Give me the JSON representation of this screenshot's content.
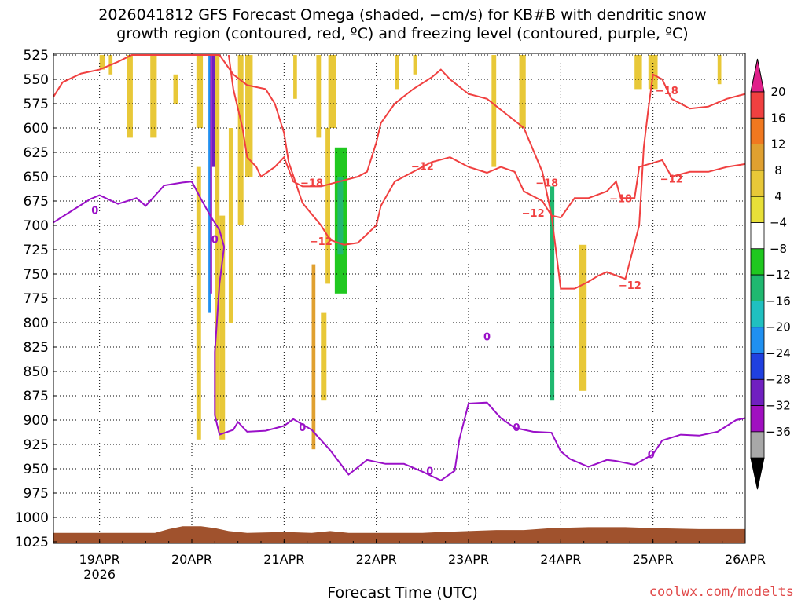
{
  "title_line1": "2026041812 GFS Forecast Omega (shaded, −cm/s) for KB#B with dendritic snow",
  "title_line2": "growth region (contoured, red, ºC) and freezing level (contoured, purple, ºC)",
  "credit": "coolwx.com/modelts",
  "chart_data": {
    "type": "heatmap",
    "title": "2026041812 GFS Forecast Omega (shaded, −cm/s) for KB#B with dendritic snow growth region (contoured, red, ºC) and freezing level (contoured, purple, ºC)",
    "xlabel": "Forecast Time (UTC)",
    "ylabel": "",
    "x_ticks": [
      "19APR",
      "20APR",
      "21APR",
      "22APR",
      "23APR",
      "24APR",
      "25APR",
      "26APR"
    ],
    "x_year_label": "2026",
    "x_range_days": [
      18.5,
      26.0
    ],
    "y_ticks": [
      525,
      550,
      575,
      600,
      625,
      650,
      675,
      700,
      725,
      750,
      775,
      800,
      825,
      850,
      875,
      900,
      925,
      950,
      975,
      1000,
      1025
    ],
    "y_range_hpa": [
      525,
      1025
    ],
    "colorbar": {
      "labels": [
        "20",
        "16",
        "12",
        "8",
        "4",
        "−4",
        "−8",
        "−12",
        "−16",
        "−20",
        "−24",
        "−28",
        "−32",
        "−36"
      ],
      "colors": [
        "#f04040",
        "#f07820",
        "#e0a030",
        "#e8c838",
        "#e8e038",
        "#ffffff",
        "#20c820",
        "#20b870",
        "#20c0c0",
        "#2090f0",
        "#2040e0",
        "#7020c0",
        "#a010c0",
        "#a8a8a8"
      ],
      "top_color": "#e0208a",
      "bottom_color": "#000000"
    },
    "series": [
      {
        "name": "freezing level 0",
        "color": "#9a10c8",
        "points": [
          [
            18.5,
            697
          ],
          [
            18.7,
            685
          ],
          [
            18.9,
            673
          ],
          [
            19.0,
            669
          ],
          [
            19.2,
            678
          ],
          [
            19.4,
            672
          ],
          [
            19.5,
            680
          ],
          [
            19.7,
            659
          ],
          [
            19.9,
            656
          ],
          [
            20.0,
            655
          ],
          [
            20.1,
            673
          ],
          [
            20.2,
            690
          ],
          [
            20.3,
            705
          ],
          [
            20.35,
            722
          ],
          [
            20.3,
            760
          ],
          [
            20.25,
            830
          ],
          [
            20.25,
            895
          ],
          [
            20.3,
            915
          ],
          [
            20.45,
            910
          ],
          [
            20.5,
            902
          ],
          [
            20.6,
            912
          ],
          [
            20.8,
            911
          ],
          [
            21.0,
            906
          ],
          [
            21.1,
            899
          ],
          [
            21.3,
            910
          ],
          [
            21.5,
            931
          ],
          [
            21.7,
            956
          ],
          [
            21.9,
            941
          ],
          [
            22.1,
            945
          ],
          [
            22.3,
            945
          ],
          [
            22.5,
            953
          ],
          [
            22.7,
            962
          ],
          [
            22.85,
            952
          ],
          [
            22.9,
            920
          ],
          [
            23.0,
            883
          ],
          [
            23.2,
            882
          ],
          [
            23.35,
            898
          ],
          [
            23.5,
            908
          ],
          [
            23.7,
            912
          ],
          [
            23.9,
            913
          ],
          [
            24.0,
            932
          ],
          [
            24.1,
            940
          ],
          [
            24.3,
            948
          ],
          [
            24.5,
            941
          ],
          [
            24.6,
            942
          ],
          [
            24.8,
            946
          ],
          [
            25.0,
            935
          ],
          [
            25.1,
            921
          ],
          [
            25.3,
            915
          ],
          [
            25.5,
            916
          ],
          [
            25.7,
            912
          ],
          [
            25.9,
            900
          ],
          [
            26.0,
            898
          ]
        ]
      },
      {
        "name": "dendritic -12",
        "color": "#f04040",
        "points": [
          [
            18.5,
            568
          ],
          [
            18.6,
            553
          ],
          [
            18.8,
            544
          ],
          [
            19.0,
            540
          ],
          [
            19.2,
            532
          ],
          [
            19.35,
            525
          ],
          [
            20.3,
            525
          ],
          [
            20.45,
            545
          ],
          [
            20.6,
            556
          ],
          [
            20.8,
            560
          ],
          [
            20.9,
            575
          ],
          [
            21.0,
            605
          ],
          [
            21.05,
            635
          ],
          [
            21.2,
            677
          ],
          [
            21.4,
            700
          ],
          [
            21.5,
            715
          ],
          [
            21.65,
            720
          ],
          [
            21.8,
            718
          ],
          [
            22.0,
            700
          ],
          [
            22.05,
            680
          ],
          [
            22.2,
            655
          ],
          [
            22.4,
            645
          ],
          [
            22.6,
            635
          ],
          [
            22.8,
            630
          ],
          [
            23.0,
            640
          ],
          [
            23.2,
            646
          ],
          [
            23.35,
            640
          ],
          [
            23.5,
            645
          ],
          [
            23.6,
            665
          ],
          [
            23.8,
            675
          ],
          [
            23.9,
            690
          ],
          [
            24.0,
            692
          ],
          [
            24.15,
            672
          ],
          [
            24.3,
            672
          ],
          [
            24.5,
            665
          ],
          [
            24.6,
            655
          ],
          [
            24.65,
            672
          ],
          [
            24.8,
            672
          ],
          [
            24.85,
            640
          ],
          [
            25.1,
            633
          ],
          [
            25.2,
            650
          ],
          [
            25.4,
            645
          ],
          [
            25.6,
            645
          ],
          [
            25.8,
            640
          ],
          [
            26.0,
            637
          ]
        ]
      },
      {
        "name": "dendritic -18",
        "color": "#f04040",
        "points": [
          [
            20.4,
            525
          ],
          [
            20.45,
            560
          ],
          [
            20.55,
            600
          ],
          [
            20.6,
            630
          ],
          [
            20.7,
            640
          ],
          [
            20.75,
            650
          ],
          [
            20.9,
            640
          ],
          [
            21.0,
            630
          ],
          [
            21.1,
            655
          ],
          [
            21.2,
            660
          ],
          [
            21.4,
            660
          ],
          [
            21.6,
            655
          ],
          [
            21.8,
            650
          ],
          [
            21.9,
            645
          ],
          [
            22.0,
            615
          ],
          [
            22.05,
            595
          ],
          [
            22.2,
            575
          ],
          [
            22.4,
            560
          ],
          [
            22.6,
            548
          ],
          [
            22.7,
            540
          ],
          [
            22.8,
            550
          ],
          [
            23.0,
            565
          ],
          [
            23.2,
            570
          ],
          [
            23.4,
            585
          ],
          [
            23.6,
            600
          ],
          [
            23.8,
            645
          ],
          [
            23.9,
            690
          ],
          [
            24.0,
            765
          ],
          [
            24.15,
            765
          ],
          [
            24.3,
            758
          ],
          [
            24.4,
            752
          ],
          [
            24.5,
            748
          ],
          [
            24.7,
            755
          ],
          [
            24.85,
            700
          ],
          [
            24.9,
            620
          ],
          [
            24.95,
            580
          ],
          [
            25.0,
            545
          ],
          [
            25.1,
            550
          ],
          [
            25.2,
            570
          ],
          [
            25.4,
            580
          ],
          [
            25.6,
            578
          ],
          [
            25.8,
            570
          ],
          [
            26.0,
            565
          ]
        ]
      }
    ],
    "contour_labels": [
      {
        "text": "0",
        "x": 18.95,
        "p": 685,
        "color": "#9a10c8"
      },
      {
        "text": "0",
        "x": 20.25,
        "p": 715,
        "color": "#9a10c8"
      },
      {
        "text": "0",
        "x": 21.2,
        "p": 908,
        "color": "#9a10c8"
      },
      {
        "text": "0",
        "x": 22.58,
        "p": 953,
        "color": "#9a10c8"
      },
      {
        "text": "0",
        "x": 23.2,
        "p": 815,
        "color": "#9a10c8"
      },
      {
        "text": "0",
        "x": 23.52,
        "p": 908,
        "color": "#9a10c8"
      },
      {
        "text": "0",
        "x": 24.98,
        "p": 936,
        "color": "#9a10c8"
      },
      {
        "text": "−18",
        "x": 21.3,
        "p": 657,
        "color": "#f04040"
      },
      {
        "text": "−12",
        "x": 21.4,
        "p": 717,
        "color": "#f04040"
      },
      {
        "text": "−12",
        "x": 22.5,
        "p": 640,
        "color": "#f04040"
      },
      {
        "text": "−18",
        "x": 23.85,
        "p": 657,
        "color": "#f04040"
      },
      {
        "text": "−12",
        "x": 23.7,
        "p": 688,
        "color": "#f04040"
      },
      {
        "text": "−18",
        "x": 24.65,
        "p": 673,
        "color": "#f04040"
      },
      {
        "text": "−12",
        "x": 24.75,
        "p": 762,
        "color": "#f04040"
      },
      {
        "text": "−18",
        "x": 25.15,
        "p": 562,
        "color": "#f04040"
      },
      {
        "text": "−12",
        "x": 25.2,
        "p": 653,
        "color": "#f04040"
      }
    ],
    "omega_shading": [
      {
        "x0": 18.55,
        "x1": 18.6,
        "p0": 525,
        "p1": 640,
        "value": -6
      },
      {
        "x0": 18.65,
        "x1": 18.7,
        "p0": 525,
        "p1": 960,
        "value": -6
      },
      {
        "x0": 18.8,
        "x1": 18.84,
        "p0": 630,
        "p1": 930,
        "value": -6
      },
      {
        "x0": 18.9,
        "x1": 18.94,
        "p0": 800,
        "p1": 895,
        "value": -6
      },
      {
        "x0": 19.0,
        "x1": 19.06,
        "p0": 525,
        "p1": 540,
        "value": 6
      },
      {
        "x0": 19.1,
        "x1": 19.14,
        "p0": 525,
        "p1": 545,
        "value": 6
      },
      {
        "x0": 19.3,
        "x1": 19.36,
        "p0": 525,
        "p1": 610,
        "value": 6
      },
      {
        "x0": 19.55,
        "x1": 19.62,
        "p0": 525,
        "p1": 610,
        "value": 6
      },
      {
        "x0": 19.8,
        "x1": 19.85,
        "p0": 545,
        "p1": 575,
        "value": 6
      },
      {
        "x0": 20.05,
        "x1": 20.12,
        "p0": 525,
        "p1": 600,
        "value": 6
      },
      {
        "x0": 20.05,
        "x1": 20.1,
        "p0": 640,
        "p1": 920,
        "value": 6
      },
      {
        "x0": 20.15,
        "x1": 20.2,
        "p0": 525,
        "p1": 900,
        "value": -6
      },
      {
        "x0": 20.18,
        "x1": 20.21,
        "p0": 525,
        "p1": 790,
        "value": -22
      },
      {
        "x0": 20.2,
        "x1": 20.22,
        "p0": 525,
        "p1": 770,
        "value": -34
      },
      {
        "x0": 20.22,
        "x1": 20.26,
        "p0": 525,
        "p1": 640,
        "value": -28
      },
      {
        "x0": 20.25,
        "x1": 20.3,
        "p0": 525,
        "p1": 900,
        "value": 6
      },
      {
        "x0": 20.3,
        "x1": 20.36,
        "p0": 690,
        "p1": 920,
        "value": 6
      },
      {
        "x0": 20.4,
        "x1": 20.45,
        "p0": 600,
        "p1": 800,
        "value": 6
      },
      {
        "x0": 20.5,
        "x1": 20.56,
        "p0": 525,
        "p1": 700,
        "value": 6
      },
      {
        "x0": 20.58,
        "x1": 20.66,
        "p0": 525,
        "p1": 650,
        "value": 6
      },
      {
        "x0": 21.1,
        "x1": 21.14,
        "p0": 525,
        "p1": 570,
        "value": 6
      },
      {
        "x0": 21.15,
        "x1": 21.18,
        "p0": 525,
        "p1": 640,
        "value": -6
      },
      {
        "x0": 21.25,
        "x1": 21.3,
        "p0": 580,
        "p1": 700,
        "value": -6
      },
      {
        "x0": 21.35,
        "x1": 21.4,
        "p0": 525,
        "p1": 610,
        "value": 6
      },
      {
        "x0": 21.48,
        "x1": 21.56,
        "p0": 525,
        "p1": 600,
        "value": 6
      },
      {
        "x0": 21.45,
        "x1": 21.5,
        "p0": 600,
        "p1": 760,
        "value": 6
      },
      {
        "x0": 21.55,
        "x1": 21.68,
        "p0": 620,
        "p1": 770,
        "value": -10
      },
      {
        "x0": 21.58,
        "x1": 21.64,
        "p0": 650,
        "p1": 730,
        "value": -14
      },
      {
        "x0": 21.4,
        "x1": 21.46,
        "p0": 790,
        "p1": 880,
        "value": 6
      },
      {
        "x0": 21.3,
        "x1": 21.34,
        "p0": 740,
        "p1": 930,
        "value": 10
      },
      {
        "x0": 22.2,
        "x1": 22.25,
        "p0": 525,
        "p1": 560,
        "value": 6
      },
      {
        "x0": 22.4,
        "x1": 22.44,
        "p0": 525,
        "p1": 545,
        "value": 6
      },
      {
        "x0": 22.7,
        "x1": 22.76,
        "p0": 525,
        "p1": 580,
        "value": -6
      },
      {
        "x0": 22.95,
        "x1": 23.0,
        "p0": 525,
        "p1": 560,
        "value": -6
      },
      {
        "x0": 23.25,
        "x1": 23.3,
        "p0": 525,
        "p1": 640,
        "value": 6
      },
      {
        "x0": 23.35,
        "x1": 23.4,
        "p0": 690,
        "p1": 780,
        "value": -6
      },
      {
        "x0": 23.55,
        "x1": 23.62,
        "p0": 525,
        "p1": 600,
        "value": 6
      },
      {
        "x0": 23.85,
        "x1": 23.95,
        "p0": 625,
        "p1": 905,
        "value": -6
      },
      {
        "x0": 23.88,
        "x1": 23.93,
        "p0": 660,
        "p1": 880,
        "value": -12
      },
      {
        "x0": 24.2,
        "x1": 24.28,
        "p0": 720,
        "p1": 870,
        "value": 6
      },
      {
        "x0": 24.4,
        "x1": 24.48,
        "p0": 525,
        "p1": 600,
        "value": -6
      },
      {
        "x0": 24.6,
        "x1": 24.66,
        "p0": 525,
        "p1": 610,
        "value": -6
      },
      {
        "x0": 24.8,
        "x1": 24.88,
        "p0": 525,
        "p1": 560,
        "value": 6
      },
      {
        "x0": 24.95,
        "x1": 25.05,
        "p0": 525,
        "p1": 560,
        "value": 6
      },
      {
        "x0": 25.7,
        "x1": 25.74,
        "p0": 525,
        "p1": 555,
        "value": 6
      }
    ],
    "terrain_color": "#a0522d",
    "grid": "dotted"
  }
}
